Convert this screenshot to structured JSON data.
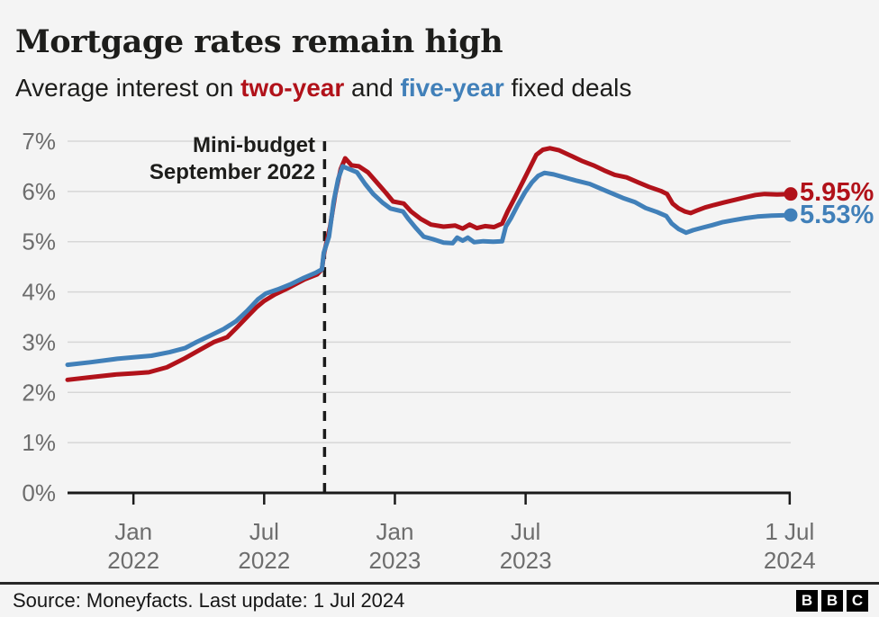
{
  "header": {
    "title": "Mortgage rates remain high",
    "subtitle": {
      "prefix": "Average interest on ",
      "two_year": "two-year",
      "mid": " and ",
      "five_year": "five-year",
      "suffix": " fixed deals"
    }
  },
  "colors": {
    "two_year": "#b1121a",
    "five_year": "#4180b9",
    "grid": "#d7d7d7",
    "axis": "#1a1a1a",
    "tick_label": "#6d6d6d",
    "background": "#f4f4f4"
  },
  "annotation": {
    "line1": "Mini-budget",
    "line2": "September 2022",
    "x": 2022.731
  },
  "chart_data": {
    "type": "line",
    "title": "Mortgage rates remain high",
    "subtitle": "Average interest on two-year and five-year fixed deals",
    "grid": true,
    "legend_position": "inline-end-labels",
    "y_axis": {
      "min": 0,
      "max": 7,
      "tick_step": 1,
      "tick_suffix": "%"
    },
    "x_axis": {
      "domain": [
        2021.748,
        2024.514
      ],
      "ticks": [
        {
          "v": 2022.0,
          "l1": "Jan",
          "l2": "2022"
        },
        {
          "v": 2022.5,
          "l1": "Jul",
          "l2": "2022"
        },
        {
          "v": 2023.0,
          "l1": "Jan",
          "l2": "2023"
        },
        {
          "v": 2023.5,
          "l1": "Jul",
          "l2": "2023"
        },
        {
          "v": 2024.51,
          "l1": "1 Jul",
          "l2": "2024"
        }
      ]
    },
    "series": [
      {
        "name": "two-year",
        "color": "#b1121a",
        "end_label": "5.95%",
        "points": [
          [
            2021.748,
            2.25
          ],
          [
            2021.834,
            2.3
          ],
          [
            2021.938,
            2.36
          ],
          [
            2022.0,
            2.38
          ],
          [
            2022.059,
            2.4
          ],
          [
            2022.128,
            2.5
          ],
          [
            2022.197,
            2.68
          ],
          [
            2022.255,
            2.85
          ],
          [
            2022.307,
            3.0
          ],
          [
            2022.359,
            3.1
          ],
          [
            2022.397,
            3.3
          ],
          [
            2022.438,
            3.52
          ],
          [
            2022.472,
            3.7
          ],
          [
            2022.5,
            3.82
          ],
          [
            2022.541,
            3.95
          ],
          [
            2022.593,
            4.08
          ],
          [
            2022.655,
            4.25
          ],
          [
            2022.703,
            4.35
          ],
          [
            2022.721,
            4.45
          ],
          [
            2022.728,
            4.74
          ],
          [
            2022.752,
            5.3
          ],
          [
            2022.772,
            5.95
          ],
          [
            2022.793,
            6.45
          ],
          [
            2022.81,
            6.66
          ],
          [
            2022.834,
            6.52
          ],
          [
            2022.862,
            6.5
          ],
          [
            2022.897,
            6.38
          ],
          [
            2022.931,
            6.18
          ],
          [
            2022.966,
            5.97
          ],
          [
            2022.993,
            5.8
          ],
          [
            2023.034,
            5.76
          ],
          [
            2023.062,
            5.6
          ],
          [
            2023.1,
            5.45
          ],
          [
            2023.138,
            5.34
          ],
          [
            2023.186,
            5.3
          ],
          [
            2023.231,
            5.32
          ],
          [
            2023.259,
            5.26
          ],
          [
            2023.286,
            5.34
          ],
          [
            2023.314,
            5.27
          ],
          [
            2023.345,
            5.31
          ],
          [
            2023.379,
            5.29
          ],
          [
            2023.41,
            5.36
          ],
          [
            2023.431,
            5.6
          ],
          [
            2023.459,
            5.88
          ],
          [
            2023.49,
            6.2
          ],
          [
            2023.517,
            6.48
          ],
          [
            2023.541,
            6.73
          ],
          [
            2023.566,
            6.83
          ],
          [
            2023.593,
            6.86
          ],
          [
            2023.628,
            6.82
          ],
          [
            2023.669,
            6.72
          ],
          [
            2023.714,
            6.61
          ],
          [
            2023.759,
            6.52
          ],
          [
            2023.8,
            6.42
          ],
          [
            2023.841,
            6.33
          ],
          [
            2023.886,
            6.28
          ],
          [
            2023.931,
            6.18
          ],
          [
            2023.972,
            6.09
          ],
          [
            2024.017,
            6.01
          ],
          [
            2024.041,
            5.95
          ],
          [
            2024.062,
            5.76
          ],
          [
            2024.086,
            5.66
          ],
          [
            2024.11,
            5.6
          ],
          [
            2024.131,
            5.57
          ],
          [
            2024.155,
            5.62
          ],
          [
            2024.186,
            5.68
          ],
          [
            2024.221,
            5.73
          ],
          [
            2024.259,
            5.78
          ],
          [
            2024.297,
            5.83
          ],
          [
            2024.338,
            5.88
          ],
          [
            2024.379,
            5.93
          ],
          [
            2024.414,
            5.95
          ],
          [
            2024.462,
            5.94
          ],
          [
            2024.514,
            5.95
          ]
        ]
      },
      {
        "name": "five-year",
        "color": "#4180b9",
        "end_label": "5.53%",
        "points": [
          [
            2021.748,
            2.55
          ],
          [
            2021.834,
            2.6
          ],
          [
            2021.938,
            2.67
          ],
          [
            2022.0,
            2.7
          ],
          [
            2022.069,
            2.73
          ],
          [
            2022.138,
            2.8
          ],
          [
            2022.197,
            2.88
          ],
          [
            2022.241,
            3.0
          ],
          [
            2022.293,
            3.13
          ],
          [
            2022.345,
            3.26
          ],
          [
            2022.393,
            3.42
          ],
          [
            2022.434,
            3.62
          ],
          [
            2022.476,
            3.85
          ],
          [
            2022.507,
            3.97
          ],
          [
            2022.552,
            4.05
          ],
          [
            2022.6,
            4.15
          ],
          [
            2022.652,
            4.28
          ],
          [
            2022.697,
            4.38
          ],
          [
            2022.721,
            4.45
          ],
          [
            2022.728,
            4.78
          ],
          [
            2022.748,
            5.1
          ],
          [
            2022.766,
            5.8
          ],
          [
            2022.783,
            6.25
          ],
          [
            2022.8,
            6.5
          ],
          [
            2022.828,
            6.44
          ],
          [
            2022.855,
            6.38
          ],
          [
            2022.886,
            6.15
          ],
          [
            2022.917,
            5.95
          ],
          [
            2022.952,
            5.78
          ],
          [
            2022.983,
            5.66
          ],
          [
            2023.031,
            5.6
          ],
          [
            2023.052,
            5.45
          ],
          [
            2023.079,
            5.28
          ],
          [
            2023.11,
            5.1
          ],
          [
            2023.145,
            5.05
          ],
          [
            2023.186,
            4.98
          ],
          [
            2023.221,
            4.97
          ],
          [
            2023.238,
            5.08
          ],
          [
            2023.259,
            5.02
          ],
          [
            2023.279,
            5.08
          ],
          [
            2023.303,
            4.99
          ],
          [
            2023.338,
            5.01
          ],
          [
            2023.376,
            5.0
          ],
          [
            2023.41,
            5.01
          ],
          [
            2023.424,
            5.3
          ],
          [
            2023.445,
            5.48
          ],
          [
            2023.469,
            5.72
          ],
          [
            2023.497,
            5.98
          ],
          [
            2023.524,
            6.18
          ],
          [
            2023.548,
            6.31
          ],
          [
            2023.572,
            6.37
          ],
          [
            2023.607,
            6.34
          ],
          [
            2023.648,
            6.28
          ],
          [
            2023.697,
            6.21
          ],
          [
            2023.745,
            6.15
          ],
          [
            2023.79,
            6.05
          ],
          [
            2023.831,
            5.96
          ],
          [
            2023.872,
            5.87
          ],
          [
            2023.917,
            5.79
          ],
          [
            2023.959,
            5.67
          ],
          [
            2024.003,
            5.59
          ],
          [
            2024.038,
            5.51
          ],
          [
            2024.059,
            5.36
          ],
          [
            2024.086,
            5.25
          ],
          [
            2024.114,
            5.18
          ],
          [
            2024.141,
            5.23
          ],
          [
            2024.176,
            5.28
          ],
          [
            2024.214,
            5.33
          ],
          [
            2024.255,
            5.39
          ],
          [
            2024.297,
            5.43
          ],
          [
            2024.341,
            5.47
          ],
          [
            2024.386,
            5.5
          ],
          [
            2024.441,
            5.52
          ],
          [
            2024.514,
            5.53
          ]
        ]
      }
    ]
  },
  "footer": {
    "source": "Source: Moneyfacts. Last update: 1 Jul 2024",
    "logo": [
      "B",
      "B",
      "C"
    ]
  }
}
